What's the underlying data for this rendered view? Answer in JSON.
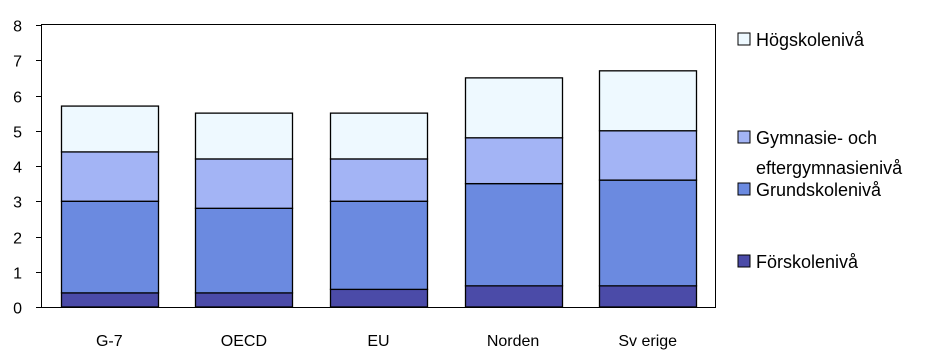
{
  "chart_data": {
    "type": "bar",
    "stacked": true,
    "categories": [
      "G-7",
      "OECD",
      "EU",
      "Norden",
      "Sv erige"
    ],
    "series": [
      {
        "name": "Förskolenivå",
        "color": "#4B4BA8",
        "values": [
          0.4,
          0.4,
          0.5,
          0.6,
          0.6
        ]
      },
      {
        "name": "Grundskolenivå",
        "color": "#6B8AE0",
        "values": [
          2.6,
          2.4,
          2.5,
          2.9,
          3.0
        ]
      },
      {
        "name": "Gymnasie- och eftergymnasienivå",
        "color": "#A3B4F5",
        "values": [
          1.4,
          1.4,
          1.2,
          1.3,
          1.4
        ]
      },
      {
        "name": "Högskolenivå",
        "color": "#EEF9FF",
        "values": [
          1.3,
          1.3,
          1.3,
          1.7,
          1.7
        ]
      }
    ],
    "legend": [
      {
        "series": 3,
        "lines": [
          "Högskolenivå"
        ]
      },
      {
        "series": 2,
        "lines": [
          "Gymnasie- och",
          "eftergymnasienivå"
        ]
      },
      {
        "series": 1,
        "lines": [
          "Grundskolenivå"
        ]
      },
      {
        "series": 0,
        "lines": [
          "Förskolenivå"
        ]
      }
    ],
    "title": "",
    "xlabel": "",
    "ylabel": "",
    "ylim": [
      0,
      8
    ],
    "yticks": [
      "0",
      "1",
      "2",
      "3",
      "4",
      "5",
      "6",
      "7",
      "8"
    ],
    "grid": false,
    "legend_position": "right"
  }
}
